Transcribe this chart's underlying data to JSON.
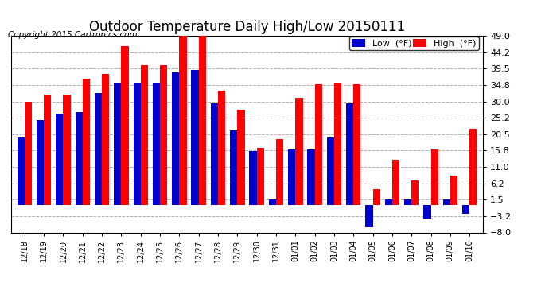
{
  "title": "Outdoor Temperature Daily High/Low 20150111",
  "copyright": "Copyright 2015 Cartronics.com",
  "legend_low": "Low  (°F)",
  "legend_high": "High  (°F)",
  "dates": [
    "12/18",
    "12/19",
    "12/20",
    "12/21",
    "12/22",
    "12/23",
    "12/24",
    "12/25",
    "12/26",
    "12/27",
    "12/28",
    "12/29",
    "12/30",
    "12/31",
    "01/01",
    "01/02",
    "01/03",
    "01/04",
    "01/05",
    "01/06",
    "01/07",
    "01/08",
    "01/09",
    "01/10"
  ],
  "high": [
    30.0,
    32.0,
    32.0,
    36.5,
    38.0,
    46.0,
    40.5,
    40.5,
    49.0,
    49.0,
    33.0,
    27.5,
    16.5,
    19.0,
    31.0,
    35.0,
    35.5,
    35.0,
    4.5,
    13.0,
    7.0,
    16.0,
    8.5,
    22.0
  ],
  "low": [
    19.5,
    24.5,
    26.5,
    27.0,
    32.5,
    35.5,
    35.5,
    35.5,
    38.5,
    39.0,
    29.5,
    21.5,
    15.5,
    1.5,
    16.0,
    16.0,
    19.5,
    29.5,
    -6.5,
    1.5,
    1.5,
    -4.0,
    1.5,
    -2.5
  ],
  "ylim": [
    -8.0,
    49.0
  ],
  "yticks": [
    -8.0,
    -3.2,
    1.5,
    6.2,
    11.0,
    15.8,
    20.5,
    25.2,
    30.0,
    34.8,
    39.5,
    44.2,
    49.0
  ],
  "bar_width": 0.38,
  "high_color": "#ff0000",
  "low_color": "#0000cc",
  "bg_color": "#ffffff",
  "grid_color": "#b0b0b0",
  "title_fontsize": 12,
  "copyright_fontsize": 7.5,
  "tick_fontsize": 8,
  "xlabel_fontsize": 7
}
